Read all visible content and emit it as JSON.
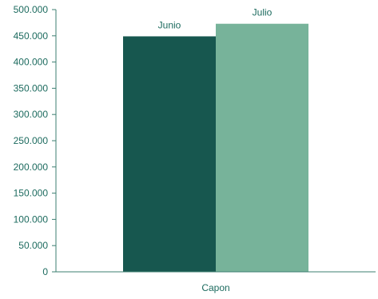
{
  "chart_data": {
    "type": "bar",
    "categories": [
      "Capon"
    ],
    "series": [
      {
        "name": "Junio",
        "values": [
          449000
        ],
        "color": "#17574f"
      },
      {
        "name": "Julio",
        "values": [
          473000
        ],
        "color": "#77b39a"
      }
    ],
    "ylim": [
      0,
      500000
    ],
    "yticks": [
      "0",
      "50.000",
      "100.000",
      "150.000",
      "200.000",
      "250.000",
      "300.000",
      "350.000",
      "400.000",
      "450.000",
      "500.000"
    ],
    "ytick_step": 50000,
    "grid": false,
    "legend": "none",
    "axis_color": "#3d7f72",
    "text_color": "#1d6b5f"
  }
}
